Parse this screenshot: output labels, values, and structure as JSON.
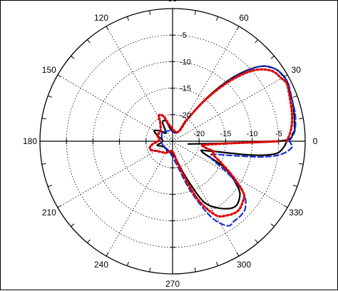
{
  "chart_data": {
    "type": "polar",
    "angle_unit": "degrees",
    "angle_ticks": [
      0,
      30,
      60,
      90,
      120,
      150,
      180,
      210,
      240,
      270,
      300,
      330
    ],
    "angle_labels": [
      "0",
      "30",
      "60",
      "90",
      "120",
      "150",
      "180",
      "210",
      "240",
      "270",
      "300",
      "330"
    ],
    "radial_range_db": [
      -25,
      0
    ],
    "radial_ticks": [
      -20,
      -15,
      -10,
      -5
    ],
    "radial_labels_right": [
      "-20",
      "-15",
      "-10",
      "-5"
    ],
    "radial_labels_up": [
      "-20",
      "-15",
      "-10",
      "-5"
    ],
    "grid": true,
    "series": [
      {
        "style": "solid",
        "color": "#000000",
        "points": [
          [
            -10,
            -22
          ],
          [
            0,
            -5
          ],
          [
            4,
            -2.2
          ],
          [
            8,
            -1.8
          ],
          [
            13,
            -1.5
          ],
          [
            18,
            -1.2
          ],
          [
            23,
            -1
          ],
          [
            26,
            -0.7
          ],
          [
            30,
            -0.7
          ],
          [
            35,
            -1.3
          ],
          [
            40,
            -3
          ],
          [
            44,
            -6
          ],
          [
            48,
            -10
          ],
          [
            52,
            -15
          ],
          [
            56,
            -20
          ],
          [
            60,
            -23
          ],
          [
            95,
            -23
          ],
          [
            108,
            -21
          ],
          [
            118,
            -21
          ],
          [
            128,
            -23
          ],
          [
            140,
            -22
          ],
          [
            150,
            -21
          ],
          [
            160,
            -22
          ],
          [
            170,
            -23
          ],
          [
            185,
            -23
          ],
          [
            195,
            -22
          ],
          [
            210,
            -23
          ],
          [
            240,
            -23
          ],
          [
            278,
            -22
          ],
          [
            290,
            -18
          ],
          [
            297,
            -12.3
          ],
          [
            305,
            -9.6
          ],
          [
            313,
            -8
          ],
          [
            320,
            -8.5
          ],
          [
            325,
            -10
          ],
          [
            333,
            -14
          ],
          [
            340,
            -19
          ],
          [
            345,
            -18
          ],
          [
            350,
            -10
          ],
          [
            353,
            -5.5
          ],
          [
            357,
            -4
          ],
          [
            360,
            -3.5
          ]
        ]
      },
      {
        "style": "dashed",
        "color": "#1a2fd6",
        "points": [
          [
            0,
            -3
          ],
          [
            4,
            -2
          ],
          [
            8,
            -1.6
          ],
          [
            13,
            -1.3
          ],
          [
            18,
            -1.2
          ],
          [
            23,
            -0.9
          ],
          [
            27,
            -0.6
          ],
          [
            30,
            -0.8
          ],
          [
            35,
            -1.3
          ],
          [
            40,
            -3
          ],
          [
            44,
            -6.3
          ],
          [
            48,
            -10.5
          ],
          [
            52,
            -15.5
          ],
          [
            56,
            -20
          ],
          [
            60,
            -23
          ],
          [
            100,
            -23
          ],
          [
            140,
            -22.5
          ],
          [
            170,
            -23
          ],
          [
            200,
            -23
          ],
          [
            250,
            -23
          ],
          [
            278,
            -21
          ],
          [
            290,
            -15
          ],
          [
            297,
            -9
          ],
          [
            303,
            -6
          ],
          [
            308,
            -6
          ],
          [
            313,
            -6
          ],
          [
            318,
            -6.5
          ],
          [
            324,
            -8.5
          ],
          [
            330,
            -13
          ],
          [
            336,
            -17
          ],
          [
            342,
            -17
          ],
          [
            346,
            -14
          ],
          [
            350,
            -8
          ],
          [
            353,
            -4.5
          ],
          [
            357,
            -2.5
          ],
          [
            360,
            -3
          ]
        ]
      },
      {
        "style": "dotted",
        "color": "#e00000",
        "points": [
          [
            0,
            -3.5
          ],
          [
            4,
            -2.8
          ],
          [
            8,
            -2.3
          ],
          [
            13,
            -1.9
          ],
          [
            18,
            -1.6
          ],
          [
            23,
            -1.2
          ],
          [
            27,
            -0.9
          ],
          [
            30,
            -1.3
          ],
          [
            35,
            -2
          ],
          [
            40,
            -4
          ],
          [
            44,
            -7
          ],
          [
            48,
            -11
          ],
          [
            52,
            -15.5
          ],
          [
            56,
            -20
          ],
          [
            60,
            -23
          ],
          [
            100,
            -22
          ],
          [
            110,
            -20
          ],
          [
            118,
            -19.5
          ],
          [
            125,
            -21
          ],
          [
            140,
            -22
          ],
          [
            160,
            -22
          ],
          [
            175,
            -22.5
          ],
          [
            190,
            -21
          ],
          [
            200,
            -20.5
          ],
          [
            212,
            -21.5
          ],
          [
            240,
            -22.5
          ],
          [
            270,
            -23
          ],
          [
            285,
            -20
          ],
          [
            293,
            -13.5
          ],
          [
            300,
            -9
          ],
          [
            306,
            -7.7
          ],
          [
            313,
            -7
          ],
          [
            319,
            -7.5
          ],
          [
            324,
            -8.5
          ],
          [
            330,
            -12
          ],
          [
            336,
            -15
          ],
          [
            342,
            -17
          ],
          [
            346,
            -17
          ],
          [
            350,
            -19
          ],
          [
            355,
            -18
          ],
          [
            360,
            -5
          ]
        ]
      }
    ]
  }
}
